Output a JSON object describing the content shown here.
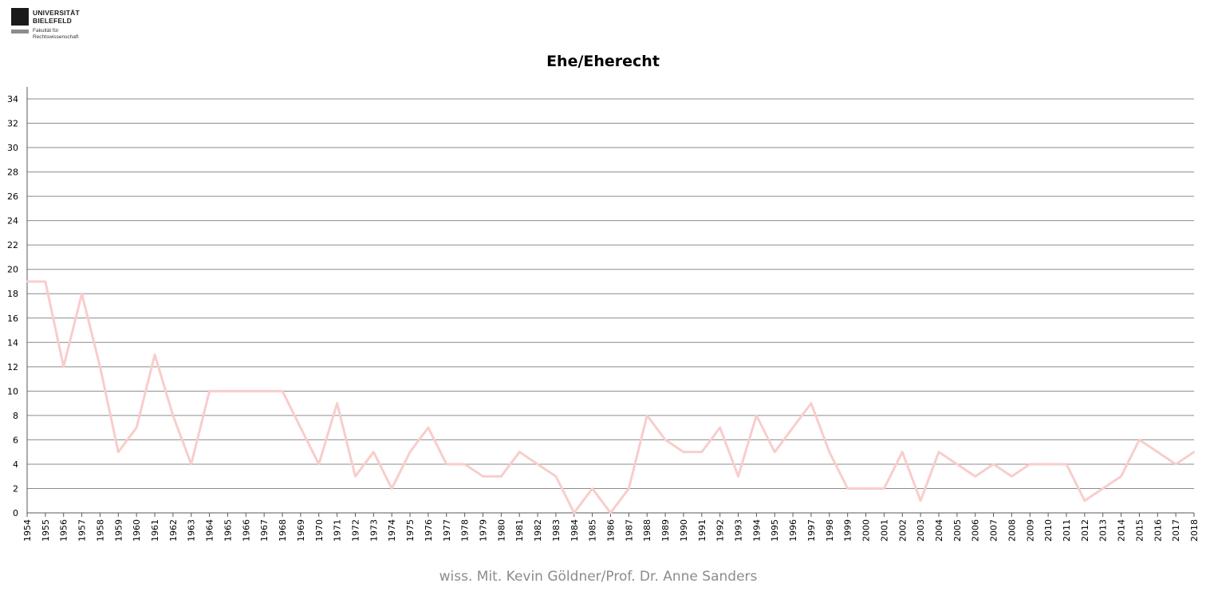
{
  "logo": {
    "name_line1": "UNIVERSITÄT",
    "name_line2": "BIELEFELD",
    "sub_line1": "Fakultät für",
    "sub_line2": "Rechtswissenschaft"
  },
  "credit": "wiss. Mit. Kevin Göldner/Prof. Dr. Anne Sanders",
  "chart_data": {
    "type": "line",
    "title": "Ehe/Eherecht",
    "xlabel": "",
    "ylabel": "",
    "ylim": [
      0,
      34
    ],
    "ytick_step": 2,
    "grid": true,
    "legend": "none",
    "line_color": "#f8cdcb",
    "categories": [
      "1954",
      "1955",
      "1956",
      "1957",
      "1958",
      "1959",
      "1960",
      "1961",
      "1962",
      "1963",
      "1964",
      "1965",
      "1966",
      "1967",
      "1968",
      "1969",
      "1970",
      "1971",
      "1972",
      "1973",
      "1974",
      "1975",
      "1976",
      "1977",
      "1978",
      "1979",
      "1980",
      "1981",
      "1982",
      "1983",
      "1984",
      "1985",
      "1986",
      "1987",
      "1988",
      "1989",
      "1990",
      "1991",
      "1992",
      "1993",
      "1994",
      "1995",
      "1996",
      "1997",
      "1998",
      "1999",
      "2000",
      "2001",
      "2002",
      "2003",
      "2004",
      "2005",
      "2006",
      "2007",
      "2008",
      "2009",
      "2010",
      "2011",
      "2012",
      "2013",
      "2014",
      "2015",
      "2016",
      "2017",
      "2018"
    ],
    "values": [
      19,
      19,
      12,
      18,
      12,
      5,
      7,
      13,
      8,
      4,
      10,
      10,
      10,
      10,
      10,
      7,
      4,
      9,
      3,
      5,
      2,
      5,
      7,
      4,
      4,
      3,
      3,
      5,
      4,
      3,
      0,
      2,
      0,
      2,
      8,
      6,
      5,
      5,
      7,
      3,
      8,
      5,
      7,
      9,
      5,
      2,
      2,
      2,
      5,
      1,
      5,
      4,
      3,
      4,
      3,
      4,
      4,
      4,
      1,
      2,
      3,
      6,
      5,
      4,
      5
    ]
  }
}
